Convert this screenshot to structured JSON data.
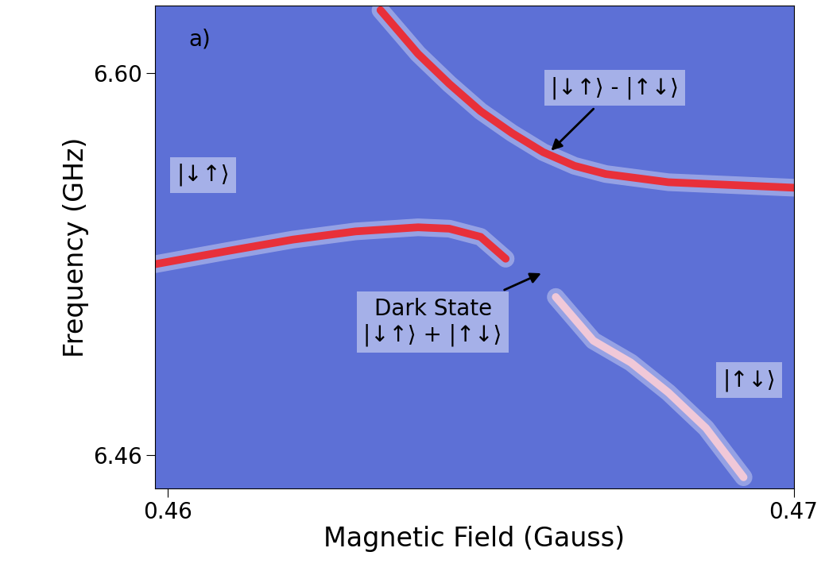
{
  "chart_data": {
    "type": "line",
    "x_label": "Magnetic Field (Gauss)",
    "y_label": "Frequency (GHz)",
    "xlim": [
      0.4598,
      0.47
    ],
    "xticks": [
      0.46,
      0.47
    ],
    "ylim": [
      6.4478,
      6.6246
    ],
    "yticks": [
      6.46,
      {
        "value": 6.6,
        "label": "6.60"
      }
    ],
    "grid": false,
    "series": [
      {
        "color": "#e8303a",
        "values": [
          6.53,
          6.535,
          6.539,
          6.542,
          6.5435,
          6.543,
          6.54,
          6.532
        ],
        "x": [
          0.4598,
          0.461,
          0.462,
          0.463,
          0.464,
          0.4645,
          0.465,
          0.4654
        ]
      },
      {
        "color": "#e8303a",
        "values": [
          6.623,
          6.607,
          6.596,
          6.586,
          6.578,
          6.571,
          6.566,
          6.563,
          6.56,
          6.559,
          6.558
        ],
        "x": [
          0.4634,
          0.464,
          0.4645,
          0.465,
          0.4655,
          0.466,
          0.4665,
          0.467,
          0.468,
          0.469,
          0.47
        ]
      },
      {
        "color": "#f0c8d8",
        "values": [
          6.518,
          6.502,
          6.494,
          6.483,
          6.47,
          6.452
        ],
        "x": [
          0.4662,
          0.4668,
          0.4674,
          0.468,
          0.4686,
          0.4692
        ]
      }
    ],
    "annotations": [
      {
        "text": "a)"
      },
      {
        "text": "|↓↑⟩"
      },
      {
        "text": "|↓↑⟩ - |↑↓⟩",
        "x": 0.4661,
        "y": 6.571
      },
      {
        "text": "Dark State\n|↓↑⟩ + |↑↓⟩",
        "x": 0.466,
        "y": 6.527
      },
      {
        "text": "|↑↓⟩"
      }
    ]
  }
}
